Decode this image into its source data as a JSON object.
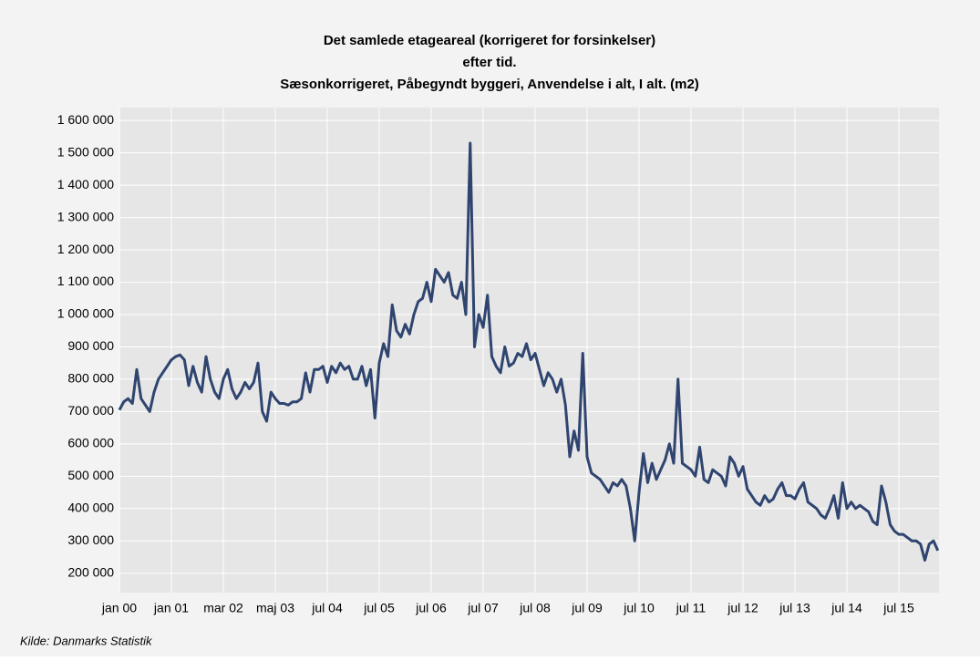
{
  "chart_data": {
    "type": "line",
    "title": [
      "Det samlede etageareal (korrigeret for forsinkelser)",
      "efter tid.",
      "Sæsonkorrigeret, Påbegyndt byggeri, Anvendelse i alt, I alt. (m2)"
    ],
    "source": "Kilde: Danmarks Statistik",
    "color": "#2f4570",
    "grid": true,
    "ylim": [
      140000,
      1640000
    ],
    "yticks": [
      {
        "value": 200000,
        "label": "200 000"
      },
      {
        "value": 300000,
        "label": "300 000"
      },
      {
        "value": 400000,
        "label": "400 000"
      },
      {
        "value": 500000,
        "label": "500 000"
      },
      {
        "value": 600000,
        "label": "600 000"
      },
      {
        "value": 700000,
        "label": "700 000"
      },
      {
        "value": 800000,
        "label": "800 000"
      },
      {
        "value": 900000,
        "label": "900 000"
      },
      {
        "value": 1000000,
        "label": "1 000 000"
      },
      {
        "value": 1100000,
        "label": "1 100 000"
      },
      {
        "value": 1200000,
        "label": "1 200 000"
      },
      {
        "value": 1300000,
        "label": "1 300 000"
      },
      {
        "value": 1400000,
        "label": "1 400 000"
      },
      {
        "value": 1500000,
        "label": "1 500 000"
      },
      {
        "value": 1600000,
        "label": "1 600 000"
      }
    ],
    "categories": [
      "jan 00",
      null,
      null,
      null,
      null,
      null,
      null,
      null,
      null,
      null,
      null,
      null,
      "jan 01",
      null,
      null,
      null,
      null,
      null,
      null,
      null,
      null,
      null,
      null,
      null,
      "mar 02",
      null,
      null,
      null,
      null,
      null,
      null,
      null,
      null,
      null,
      null,
      null,
      "maj 03",
      null,
      null,
      null,
      null,
      null,
      null,
      null,
      null,
      null,
      null,
      null,
      "jul 04",
      null,
      null,
      null,
      null,
      null,
      null,
      null,
      null,
      null,
      null,
      null,
      "jul 05",
      null,
      null,
      null,
      null,
      null,
      null,
      null,
      null,
      null,
      null,
      null,
      "jul 06",
      null,
      null,
      null,
      null,
      null,
      null,
      null,
      null,
      null,
      null,
      null,
      "jul 07",
      null,
      null,
      null,
      null,
      null,
      null,
      null,
      null,
      null,
      null,
      null,
      "jul 08",
      null,
      null,
      null,
      null,
      null,
      null,
      null,
      null,
      null,
      null,
      null,
      "jul 09",
      null,
      null,
      null,
      null,
      null,
      null,
      null,
      null,
      null,
      null,
      null,
      "jul 10",
      null,
      null,
      null,
      null,
      null,
      null,
      null,
      null,
      null,
      null,
      null,
      "jul 11",
      null,
      null,
      null,
      null,
      null,
      null,
      null,
      null,
      null,
      null,
      null,
      "jul 12",
      null,
      null,
      null,
      null,
      null,
      null,
      null,
      null,
      null,
      null,
      null,
      "jul 13",
      null,
      null,
      null,
      null,
      null,
      null,
      null,
      null,
      null,
      null,
      null,
      "jul 14",
      null,
      null,
      null,
      null,
      null,
      null,
      null,
      null,
      null,
      null,
      null,
      "jul 15",
      null,
      null,
      null,
      null,
      null,
      null,
      null,
      null,
      null
    ],
    "values": [
      705000,
      730000,
      740000,
      725000,
      830000,
      740000,
      720000,
      700000,
      760000,
      800000,
      820000,
      840000,
      860000,
      870000,
      875000,
      860000,
      780000,
      840000,
      790000,
      760000,
      870000,
      800000,
      760000,
      740000,
      800000,
      830000,
      770000,
      740000,
      760000,
      790000,
      770000,
      790000,
      850000,
      700000,
      670000,
      760000,
      740000,
      725000,
      725000,
      720000,
      730000,
      730000,
      740000,
      820000,
      760000,
      830000,
      830000,
      840000,
      790000,
      840000,
      820000,
      850000,
      830000,
      840000,
      800000,
      800000,
      840000,
      780000,
      830000,
      680000,
      850000,
      910000,
      870000,
      1030000,
      950000,
      930000,
      970000,
      940000,
      1000000,
      1040000,
      1050000,
      1100000,
      1040000,
      1140000,
      1120000,
      1100000,
      1130000,
      1060000,
      1050000,
      1100000,
      1000000,
      1530000,
      900000,
      1000000,
      960000,
      1060000,
      870000,
      840000,
      820000,
      900000,
      840000,
      850000,
      880000,
      870000,
      910000,
      860000,
      880000,
      830000,
      780000,
      820000,
      800000,
      760000,
      800000,
      720000,
      560000,
      640000,
      580000,
      880000,
      560000,
      510000,
      500000,
      490000,
      470000,
      450000,
      480000,
      470000,
      490000,
      470000,
      400000,
      300000,
      450000,
      570000,
      480000,
      540000,
      490000,
      520000,
      550000,
      600000,
      540000,
      800000,
      540000,
      530000,
      520000,
      500000,
      590000,
      490000,
      480000,
      520000,
      510000,
      500000,
      470000,
      560000,
      540000,
      500000,
      530000,
      460000,
      440000,
      420000,
      410000,
      440000,
      420000,
      430000,
      460000,
      480000,
      440000,
      440000,
      430000,
      460000,
      480000,
      420000,
      410000,
      400000,
      380000,
      370000,
      400000,
      440000,
      370000,
      480000,
      400000,
      420000,
      400000,
      410000,
      400000,
      390000,
      360000,
      350000,
      470000,
      420000,
      350000,
      330000,
      320000,
      320000,
      310000,
      300000,
      300000,
      290000,
      240000,
      290000,
      300000,
      270000
    ]
  }
}
